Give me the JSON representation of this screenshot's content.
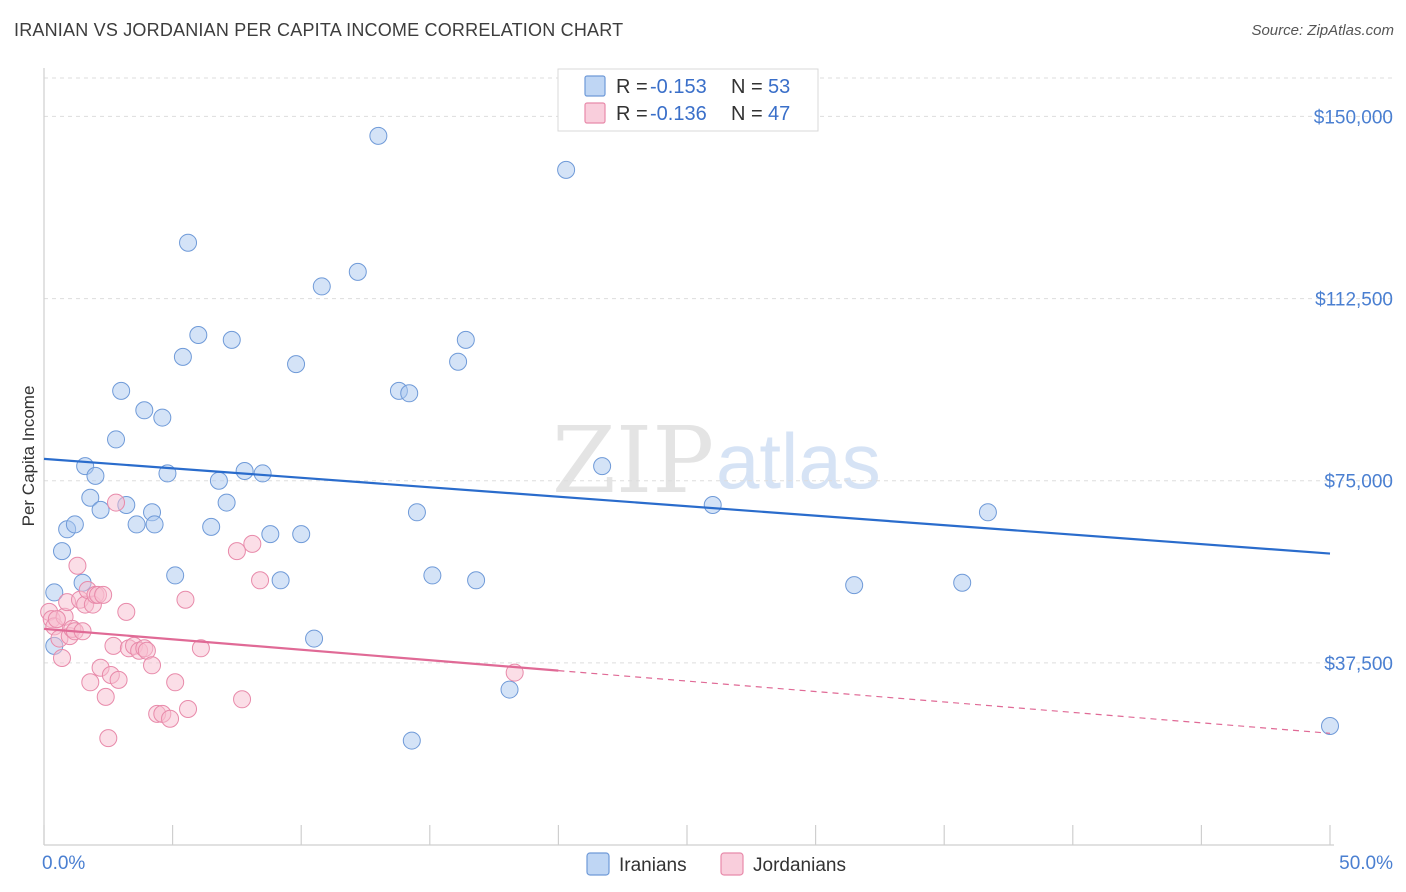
{
  "header": {
    "title": "IRANIAN VS JORDANIAN PER CAPITA INCOME CORRELATION CHART",
    "source": "Source: ZipAtlas.com"
  },
  "watermark": {
    "zip": "ZIP",
    "atlas": "atlas"
  },
  "legend_box": {
    "rows": [
      {
        "r_label": "R = ",
        "r_value": "-0.153",
        "n_label": "N = ",
        "n_value": "53"
      },
      {
        "r_label": "R = ",
        "r_value": "-0.136",
        "n_label": "N = ",
        "n_value": "47"
      }
    ]
  },
  "colors": {
    "iranians_fill": "#aac8f0",
    "iranians_stroke": "#6f9ad8",
    "iranians_line": "#2a6ccc",
    "jordanians_fill": "#f7bdd0",
    "jordanians_stroke": "#e88aaa",
    "jordanians_line": "#e06a96",
    "grid": "#dddddd",
    "tick_label": "#4a7fd1"
  },
  "chart_data": {
    "type": "scatter",
    "title": "IRANIAN VS JORDANIAN PER CAPITA INCOME CORRELATION CHART",
    "xlabel": "",
    "ylabel": "Per Capita Income",
    "xlim": [
      0,
      50
    ],
    "ylim": [
      0,
      157500
    ],
    "x_tick_labels": [
      "0.0%",
      "50.0%"
    ],
    "y_ticks": [
      37500,
      75000,
      112500,
      150000
    ],
    "y_tick_labels": [
      "$37,500",
      "$75,000",
      "$112,500",
      "$150,000"
    ],
    "legend_position": "bottom-center",
    "series": [
      {
        "name": "Iranians",
        "r": -0.153,
        "n": 53,
        "trend": {
          "x": [
            0,
            50
          ],
          "y": [
            79500,
            60000
          ],
          "solid_until": 50
        },
        "points": [
          [
            0.4,
            41000
          ],
          [
            0.4,
            52000
          ],
          [
            0.7,
            60500
          ],
          [
            0.9,
            65000
          ],
          [
            1.2,
            66000
          ],
          [
            1.5,
            54000
          ],
          [
            1.6,
            78000
          ],
          [
            1.8,
            71500
          ],
          [
            2.0,
            76000
          ],
          [
            2.2,
            69000
          ],
          [
            2.8,
            83500
          ],
          [
            3.0,
            93500
          ],
          [
            3.2,
            70000
          ],
          [
            3.6,
            66000
          ],
          [
            3.9,
            89500
          ],
          [
            4.2,
            68500
          ],
          [
            4.3,
            66000
          ],
          [
            4.6,
            88000
          ],
          [
            4.8,
            76500
          ],
          [
            5.1,
            55500
          ],
          [
            5.4,
            100500
          ],
          [
            5.6,
            124000
          ],
          [
            6.0,
            105000
          ],
          [
            6.5,
            65500
          ],
          [
            6.8,
            75000
          ],
          [
            7.1,
            70500
          ],
          [
            7.3,
            104000
          ],
          [
            7.8,
            77000
          ],
          [
            8.5,
            76500
          ],
          [
            8.8,
            64000
          ],
          [
            9.2,
            54500
          ],
          [
            9.8,
            99000
          ],
          [
            10.0,
            64000
          ],
          [
            10.5,
            42500
          ],
          [
            10.8,
            115000
          ],
          [
            12.2,
            118000
          ],
          [
            13.0,
            146000
          ],
          [
            13.8,
            93500
          ],
          [
            14.2,
            93000
          ],
          [
            14.3,
            21500
          ],
          [
            14.5,
            68500
          ],
          [
            15.1,
            55500
          ],
          [
            16.1,
            99500
          ],
          [
            16.4,
            104000
          ],
          [
            16.8,
            54500
          ],
          [
            18.1,
            32000
          ],
          [
            20.3,
            139000
          ],
          [
            21.7,
            78000
          ],
          [
            26.0,
            70000
          ],
          [
            31.5,
            53500
          ],
          [
            35.7,
            54000
          ],
          [
            36.7,
            68500
          ],
          [
            50.0,
            24500
          ]
        ]
      },
      {
        "name": "Jordanians",
        "r": -0.136,
        "n": 47,
        "trend": {
          "x": [
            0,
            50
          ],
          "y": [
            44500,
            23000
          ],
          "solid_until": 20
        },
        "points": [
          [
            0.2,
            48000
          ],
          [
            0.3,
            46500
          ],
          [
            0.4,
            45000
          ],
          [
            0.6,
            42500
          ],
          [
            0.7,
            38500
          ],
          [
            0.8,
            47000
          ],
          [
            0.9,
            50000
          ],
          [
            1.0,
            43000
          ],
          [
            1.1,
            44500
          ],
          [
            1.2,
            44000
          ],
          [
            1.3,
            57500
          ],
          [
            1.4,
            50500
          ],
          [
            1.6,
            49500
          ],
          [
            1.7,
            52500
          ],
          [
            1.8,
            33500
          ],
          [
            1.9,
            49500
          ],
          [
            2.0,
            51500
          ],
          [
            2.1,
            51500
          ],
          [
            2.2,
            36500
          ],
          [
            2.3,
            51500
          ],
          [
            2.4,
            30500
          ],
          [
            2.5,
            22000
          ],
          [
            2.6,
            35000
          ],
          [
            2.7,
            41000
          ],
          [
            2.8,
            70500
          ],
          [
            2.9,
            34000
          ],
          [
            3.2,
            48000
          ],
          [
            3.3,
            40500
          ],
          [
            3.5,
            41000
          ],
          [
            3.7,
            40000
          ],
          [
            3.9,
            40500
          ],
          [
            4.0,
            40000
          ],
          [
            4.2,
            37000
          ],
          [
            4.4,
            27000
          ],
          [
            4.6,
            27000
          ],
          [
            4.9,
            26000
          ],
          [
            5.1,
            33500
          ],
          [
            5.5,
            50500
          ],
          [
            5.6,
            28000
          ],
          [
            6.1,
            40500
          ],
          [
            7.5,
            60500
          ],
          [
            7.7,
            30000
          ],
          [
            8.1,
            62000
          ],
          [
            8.4,
            54500
          ],
          [
            18.3,
            35500
          ],
          [
            0.5,
            46500
          ],
          [
            1.5,
            44000
          ]
        ]
      }
    ]
  }
}
